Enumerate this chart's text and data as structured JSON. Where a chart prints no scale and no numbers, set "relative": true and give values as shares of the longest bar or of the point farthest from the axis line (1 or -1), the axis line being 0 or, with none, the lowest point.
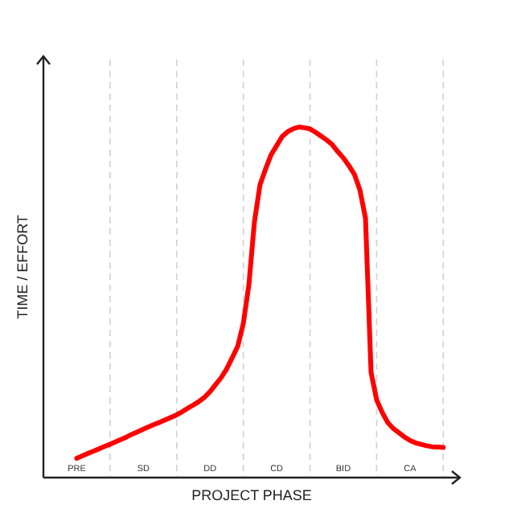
{
  "chart_data": {
    "type": "line",
    "relative": true,
    "xlabel": "PROJECT PHASE",
    "ylabel": "TIME / EFFORT",
    "categories": [
      "PRE",
      null,
      null,
      null,
      null,
      null,
      null,
      null,
      null,
      null,
      null,
      null,
      "SD",
      null,
      null,
      null,
      null,
      null,
      null,
      null,
      null,
      null,
      null,
      null,
      "DD",
      null,
      null,
      null,
      null,
      null,
      null,
      null,
      null,
      null,
      null,
      null,
      "CD",
      null,
      null,
      null,
      null,
      null,
      null,
      null,
      null,
      null,
      null,
      null,
      "BID",
      null,
      null,
      null,
      null,
      null,
      null,
      null,
      null,
      null,
      null,
      null,
      "CA",
      null,
      null,
      null,
      null,
      null,
      null
    ],
    "line_style": "solid",
    "marker": "none",
    "series": [
      {
        "color": "#ff0000",
        "values": [
          0.055,
          0.062,
          0.069,
          0.075,
          0.082,
          0.089,
          0.095,
          0.102,
          0.109,
          0.116,
          0.124,
          0.131,
          0.138,
          0.145,
          0.152,
          0.158,
          0.165,
          0.172,
          0.179,
          0.188,
          0.198,
          0.207,
          0.217,
          0.229,
          0.245,
          0.265,
          0.285,
          0.31,
          0.342,
          0.375,
          0.44,
          0.55,
          0.73,
          0.835,
          0.88,
          0.921,
          0.947,
          0.973,
          0.987,
          0.995,
          1.0,
          0.998,
          0.995,
          0.985,
          0.974,
          0.963,
          0.95,
          0.93,
          0.912,
          0.89,
          0.865,
          0.82,
          0.74,
          0.3,
          0.222,
          0.186,
          0.157,
          0.14,
          0.128,
          0.116,
          0.106,
          0.099,
          0.095,
          0.091,
          0.088,
          0.087,
          0.086
        ]
      }
    ]
  }
}
